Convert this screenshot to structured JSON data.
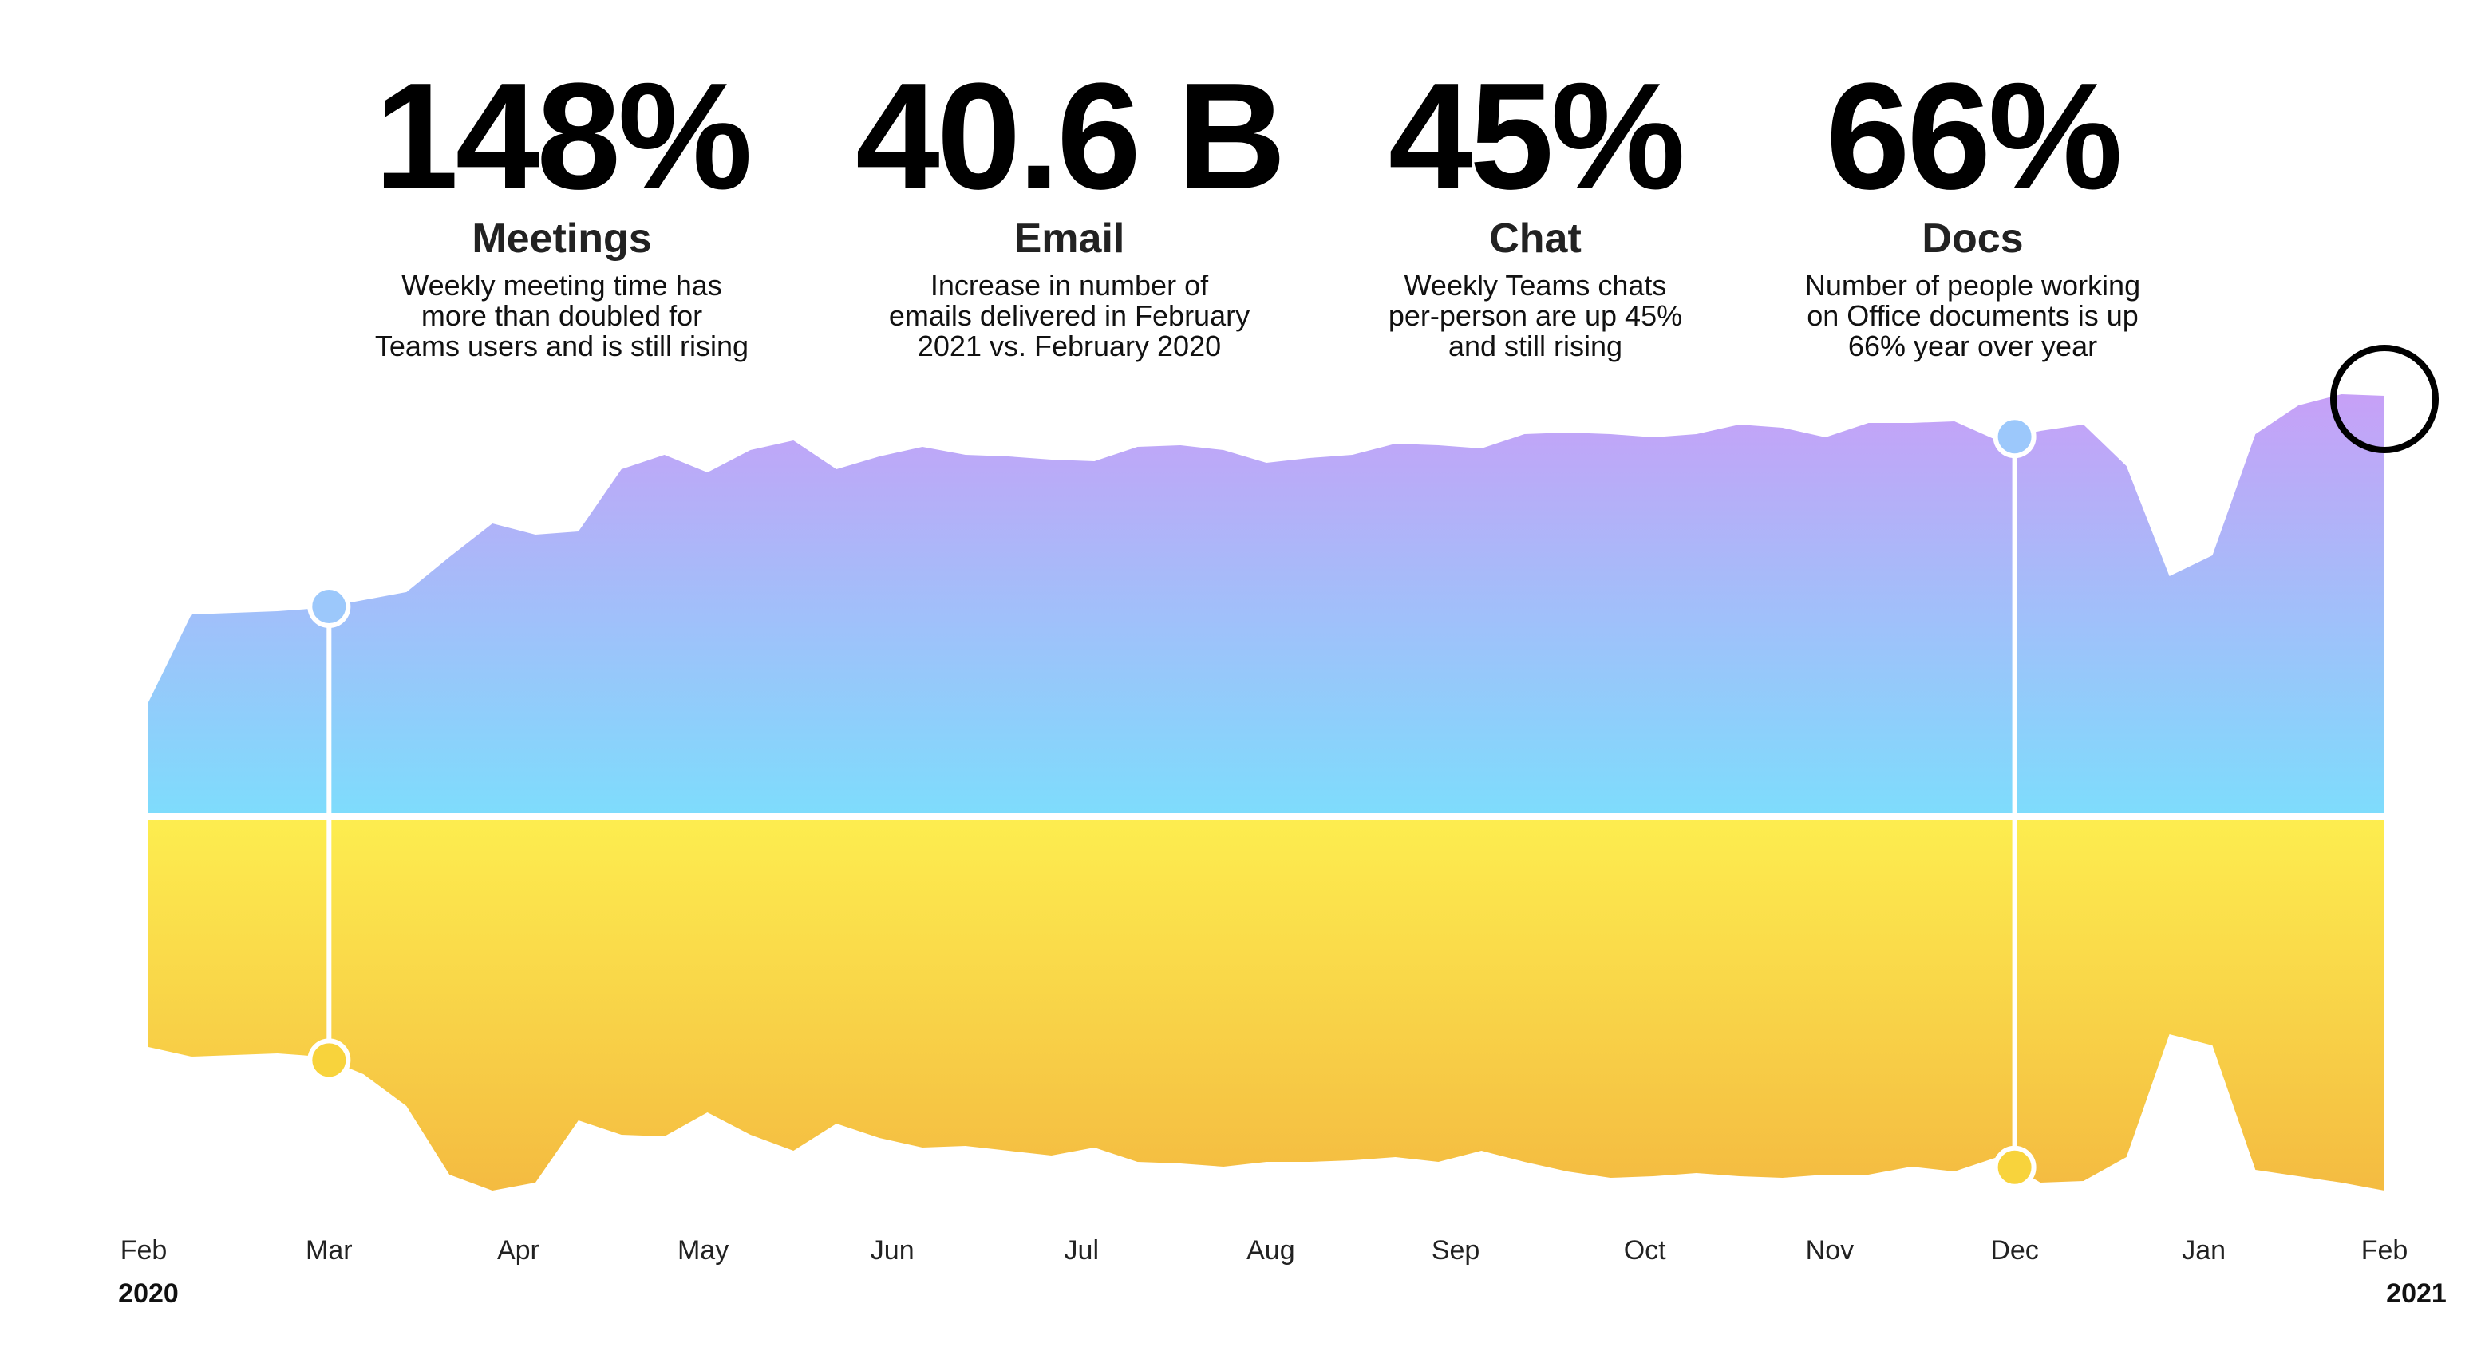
{
  "stats": [
    {
      "value": "148%",
      "label": "Meetings",
      "lines": [
        "Weekly meeting time has",
        "more than doubled for",
        "Teams users and is still rising"
      ]
    },
    {
      "value": "40.6 B",
      "label": "Email",
      "lines": [
        "Increase in number of",
        "emails delivered in February",
        "2021 vs. February 2020"
      ]
    },
    {
      "value": "45%",
      "label": "Chat",
      "lines": [
        "Weekly Teams chats",
        "per-person are up 45%",
        "and still rising"
      ]
    },
    {
      "value": "66%",
      "label": "Docs",
      "lines": [
        "Number of people working",
        "on Office documents is up",
        "66% year over year"
      ]
    }
  ],
  "chart_data": {
    "type": "mirrored-area",
    "x": [
      0,
      1,
      2,
      3,
      4,
      5,
      6,
      7,
      8,
      9,
      10,
      11,
      12,
      13,
      14,
      15,
      16,
      17,
      18,
      19,
      20,
      21,
      22,
      23,
      24,
      25,
      26,
      27,
      28,
      29,
      30,
      31,
      32,
      33,
      34,
      35,
      36,
      37,
      38,
      39,
      40,
      41,
      42,
      43,
      44,
      45,
      46,
      47,
      48,
      49,
      50,
      51,
      52
    ],
    "xlim": [
      0,
      52
    ],
    "xticks": [
      {
        "value": 0,
        "label": "Feb"
      },
      {
        "value": 4.2,
        "label": "Mar"
      },
      {
        "value": 8.6,
        "label": "Apr"
      },
      {
        "value": 12.9,
        "label": "May"
      },
      {
        "value": 17.3,
        "label": "Jun"
      },
      {
        "value": 21.7,
        "label": "Jul"
      },
      {
        "value": 26.1,
        "label": "Aug"
      },
      {
        "value": 30.4,
        "label": "Sep"
      },
      {
        "value": 34.8,
        "label": "Oct"
      },
      {
        "value": 39.1,
        "label": "Nov"
      },
      {
        "value": 43.4,
        "label": "Dec"
      },
      {
        "value": 47.8,
        "label": "Jan"
      },
      {
        "value": 52,
        "label": "Feb"
      }
    ],
    "year_labels": [
      {
        "value": 0,
        "label": "2020"
      },
      {
        "value": 52,
        "label": "2021"
      }
    ],
    "ylim": [
      0,
      300
    ],
    "series": [
      {
        "direction": "up",
        "gradient": [
          "#c7a0f7",
          "#7edcfc"
        ],
        "values": [
          70,
          125,
          126,
          127,
          129,
          134,
          139,
          161,
          182,
          175,
          177,
          216,
          225,
          214,
          228,
          234,
          216,
          224,
          230,
          225,
          224,
          222,
          221,
          230,
          231,
          228,
          220,
          223,
          225,
          232,
          231,
          229,
          238,
          239,
          238,
          236,
          238,
          244,
          242,
          236,
          245,
          245,
          246,
          234,
          240,
          244,
          218,
          149,
          162,
          238,
          256,
          263,
          262
        ]
      },
      {
        "direction": "down",
        "gradient": [
          "#fded4f",
          "#f4bb41"
        ],
        "values": [
          143,
          149,
          148,
          147,
          149,
          160,
          180,
          223,
          233,
          228,
          189,
          198,
          199,
          184,
          198,
          208,
          191,
          200,
          206,
          205,
          208,
          211,
          206,
          215,
          216,
          218,
          215,
          215,
          214,
          212,
          215,
          208,
          215,
          221,
          225,
          224,
          222,
          224,
          225,
          223,
          223,
          218,
          221,
          212,
          228,
          227,
          212,
          135,
          142,
          220,
          224,
          228,
          233
        ]
      }
    ],
    "highlight_ticks": [
      1,
      10
    ]
  }
}
